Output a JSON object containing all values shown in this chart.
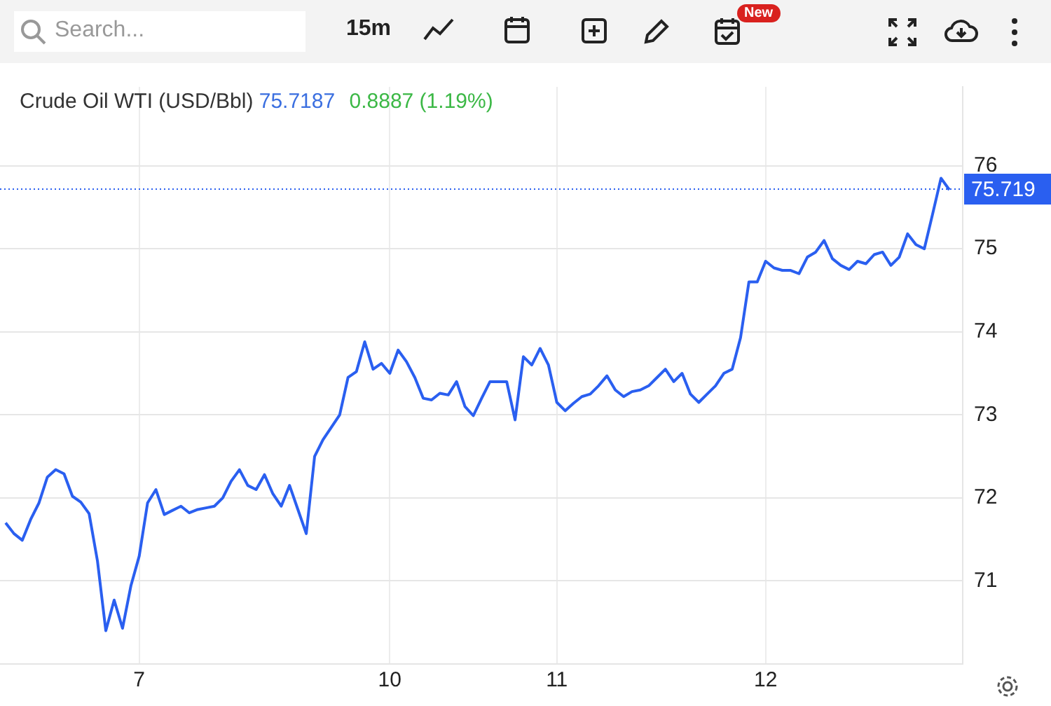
{
  "chart_data": {
    "type": "line",
    "title": "Crude Oil WTI (USD/Bbl)",
    "annotations": [
      "75.7187",
      "0.8887 (1.19%)",
      "Search...",
      "15m",
      "New"
    ],
    "categories": [
      null,
      null,
      null,
      null,
      null,
      null,
      null,
      null,
      null,
      null,
      null,
      null,
      null,
      null,
      null,
      null,
      "7",
      null,
      null,
      null,
      null,
      null,
      null,
      null,
      null,
      null,
      null,
      null,
      null,
      null,
      null,
      null,
      null,
      null,
      null,
      null,
      null,
      null,
      null,
      null,
      null,
      null,
      null,
      null,
      null,
      null,
      "10",
      null,
      null,
      null,
      null,
      null,
      null,
      null,
      null,
      null,
      null,
      null,
      null,
      null,
      null,
      null,
      null,
      null,
      null,
      null,
      "11",
      null,
      null,
      null,
      null,
      null,
      null,
      null,
      null,
      null,
      null,
      null,
      null,
      null,
      null,
      null,
      null,
      null,
      null,
      null,
      null,
      null,
      null,
      null,
      null,
      "12",
      null,
      null,
      null,
      null,
      null,
      null,
      null,
      null,
      null,
      null,
      null,
      null,
      null,
      null,
      null,
      null,
      null,
      null,
      null,
      null,
      null,
      null
    ],
    "series": [
      {
        "color": "#2a5ff0",
        "values": [
          71.7,
          71.57,
          71.49,
          71.74,
          71.94,
          72.25,
          72.34,
          72.29,
          72.02,
          71.95,
          71.81,
          71.24,
          70.4,
          70.77,
          70.43,
          70.94,
          71.3,
          71.94,
          72.1,
          71.8,
          71.85,
          71.9,
          71.82,
          71.86,
          71.88,
          71.9,
          72.0,
          72.2,
          72.34,
          72.15,
          72.1,
          72.28,
          72.05,
          71.9,
          72.15,
          71.86,
          71.57,
          72.5,
          72.7,
          72.85,
          73.0,
          73.45,
          73.52,
          73.88,
          73.55,
          73.62,
          73.5,
          73.78,
          73.64,
          73.45,
          73.2,
          73.18,
          73.26,
          73.24,
          73.4,
          73.1,
          72.99,
          73.2,
          73.4,
          73.4,
          73.4,
          72.94,
          73.7,
          73.6,
          73.8,
          73.6,
          73.15,
          73.05,
          73.14,
          73.22,
          73.25,
          73.35,
          73.47,
          73.3,
          73.22,
          73.28,
          73.3,
          73.35,
          73.45,
          73.55,
          73.4,
          73.5,
          73.25,
          73.15,
          73.25,
          73.35,
          73.5,
          73.55,
          73.93,
          74.6,
          74.6,
          74.85,
          74.77,
          74.74,
          74.74,
          74.7,
          74.9,
          74.96,
          75.1,
          74.88,
          74.8,
          74.75,
          74.85,
          74.82,
          74.93,
          74.96,
          74.8,
          74.9,
          75.18,
          75.05,
          75.0,
          75.42,
          75.85,
          75.71
        ]
      }
    ],
    "ylim": [
      70,
      76.95
    ],
    "yticks": [
      71,
      72,
      73,
      74,
      75,
      76
    ],
    "ref_lines": [
      {
        "axis": "y",
        "value": 75.7187,
        "label": "75.719",
        "color": "#2a5ff0",
        "line_style": "dotted"
      }
    ],
    "grid": true,
    "legend": false,
    "marker": "none",
    "line_style": "solid"
  }
}
